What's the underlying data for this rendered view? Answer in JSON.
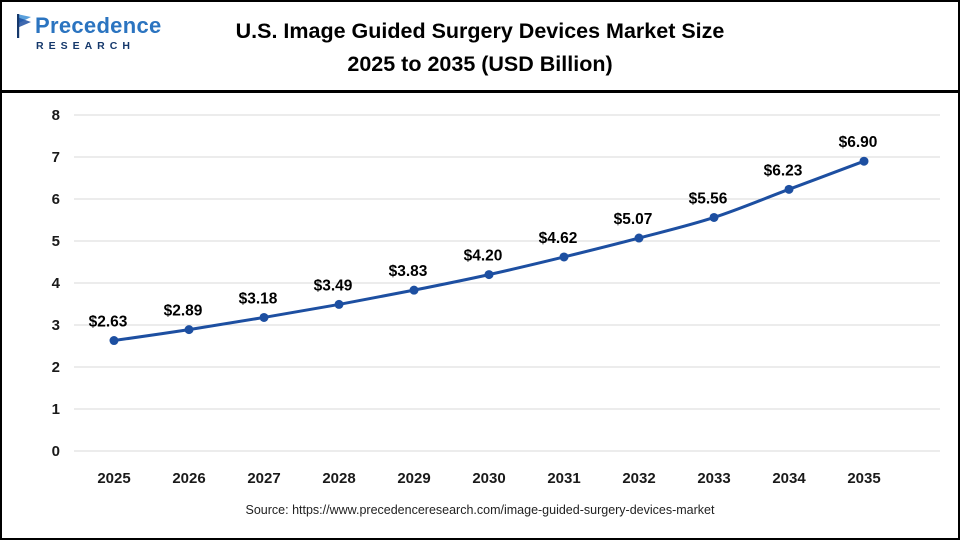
{
  "header": {
    "logo": {
      "name": "Precedence",
      "subtitle": "RESEARCH"
    },
    "title_line1": "U.S. Image Guided Surgery Devices Market Size",
    "title_line2": "2025 to 2035 (USD Billion)"
  },
  "footer": {
    "source": "Source: https://www.precedenceresearch.com/image-guided-surgery-devices-market"
  },
  "chart_data": {
    "type": "line",
    "title": "U.S. Image Guided Surgery Devices Market Size 2025 to 2035 (USD Billion)",
    "categories": [
      "2025",
      "2026",
      "2027",
      "2028",
      "2029",
      "2030",
      "2031",
      "2032",
      "2033",
      "2034",
      "2035"
    ],
    "series": [
      {
        "name": "U.S. Image Guided Surgery Devices Market Size (USD Billion)",
        "values": [
          2.63,
          2.89,
          3.18,
          3.49,
          3.83,
          4.2,
          4.62,
          5.07,
          5.56,
          6.23,
          6.9
        ]
      }
    ],
    "value_labels": [
      "$2.63",
      "$2.89",
      "$3.18",
      "$3.49",
      "$3.83",
      "$4.20",
      "$4.62",
      "$5.07",
      "$5.56",
      "$6.23",
      "$6.90"
    ],
    "xlabel": "",
    "ylabel": "",
    "ylim": [
      0,
      8
    ],
    "yticks": [
      0,
      1,
      2,
      3,
      4,
      5,
      6,
      7,
      8
    ],
    "grid": true,
    "legend": "none",
    "line_color": "#1d4fa1",
    "marker_color": "#1d4fa1",
    "grid_color": "#d9d9d9",
    "label_color": "#000000"
  }
}
